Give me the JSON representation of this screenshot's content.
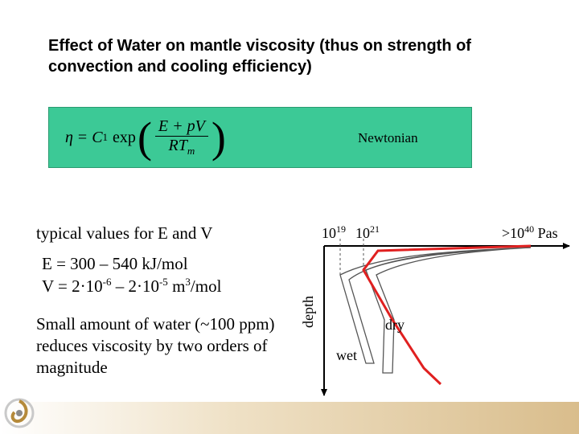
{
  "slide": {
    "title": "Effect of Water on mantle viscosity (thus on strength of convection and cooling efficiency)",
    "formula": {
      "eta": "η",
      "eq": "=",
      "c": "C",
      "sub1": "1",
      "exp": "exp",
      "num": "E + pV",
      "den_r": "RT",
      "den_sub": "m"
    },
    "formula_label": "Newtonian",
    "typical_values": "typical values for E and V",
    "e_line": "E = 300 – 540 kJ/mol",
    "v_line": {
      "prefix": "V = 2·10",
      "exp1": "-6",
      "mid": " – 2·10",
      "exp2": "-5",
      "suffix": " m",
      "exp3": "3",
      "end": "/mol"
    },
    "water_text": "Small amount of water (~100 ppm) reduces viscosity by two orders of magnitude"
  },
  "plot": {
    "tick1": {
      "base": "10",
      "exp": "19"
    },
    "tick2": {
      "base": "10",
      "exp": "21"
    },
    "tick3": {
      "prefix": ">10",
      "exp": "40",
      "unit": " Pas"
    },
    "depth_label": "depth",
    "dry_label": "dry",
    "wet_label": "wet",
    "colors": {
      "dry_curve": "#e02020",
      "axes": "#000000",
      "formula_bg": "#3cc996"
    }
  }
}
